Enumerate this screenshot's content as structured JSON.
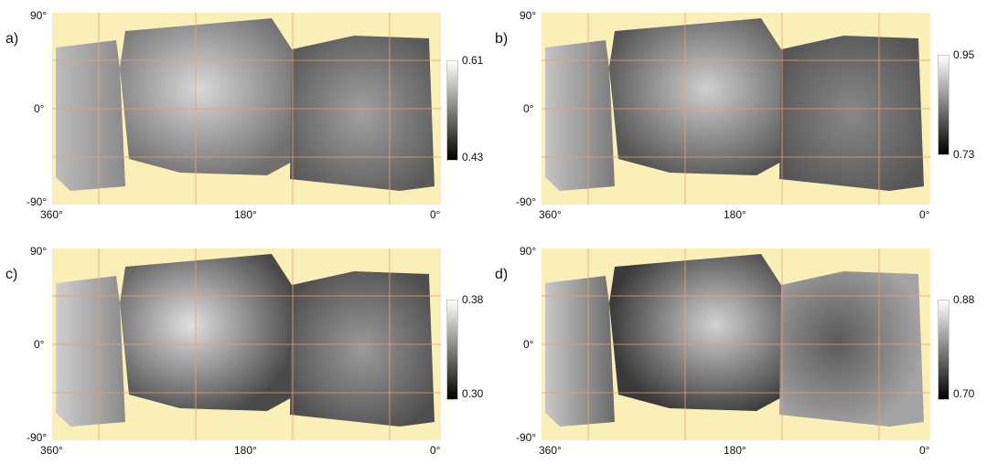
{
  "panels": [
    {
      "label": "a)",
      "lat_top": "90°",
      "lat_mid": "0°",
      "lat_bottom": "-90°",
      "lon_left": "360°",
      "lon_mid": "180°",
      "lon_right": "0°",
      "scale_max": "0.61",
      "scale_min": "0.43"
    },
    {
      "label": "b)",
      "lat_top": "90°",
      "lat_mid": "0°",
      "lat_bottom": "-90°",
      "lon_left": "360°",
      "lon_mid": "180°",
      "lon_right": "0°",
      "scale_max": "0.95",
      "scale_min": "0.73"
    },
    {
      "label": "c)",
      "lat_top": "90°",
      "lat_mid": "0°",
      "lat_bottom": "-90°",
      "lon_left": "360°",
      "lon_mid": "180°",
      "lon_right": "0°",
      "scale_max": "0.38",
      "scale_min": "0.30"
    },
    {
      "label": "d)",
      "lat_top": "90°",
      "lat_mid": "0°",
      "lat_bottom": "-90°",
      "lon_left": "360°",
      "lon_mid": "180°",
      "lon_right": "0°",
      "scale_max": "0.88",
      "scale_min": "0.70"
    }
  ],
  "colors": {
    "background_fill": "#fbefb8",
    "grid_line": "#e8a07a"
  }
}
